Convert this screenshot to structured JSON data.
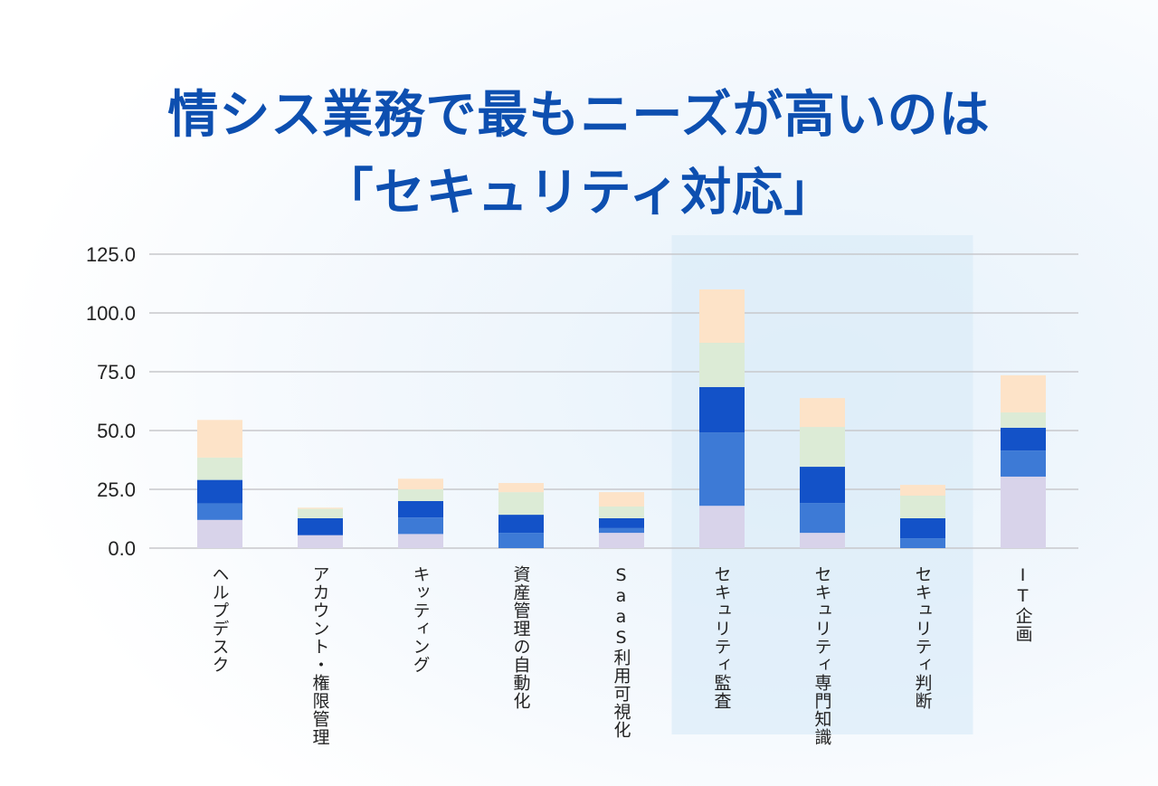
{
  "title_line1": "情シス業務で最もニーズが高いのは",
  "title_line2": "「セキュリティ対応」",
  "chart_data": {
    "type": "bar",
    "stacked": true,
    "categories": [
      "ヘルプデスク",
      "アカウント・権限管理",
      "キッティング",
      "資産管理の自動化",
      "SaaS利用可視化",
      "セキュリティ監査",
      "セキュリティ専門知識",
      "セキュリティ判断",
      "IT企画"
    ],
    "series": [
      {
        "color": "#d8d3ea",
        "values": [
          12.0,
          5.5,
          6.0,
          0.0,
          6.5,
          18.0,
          6.5,
          0.0,
          30.4
        ]
      },
      {
        "color": "#3d7ad6",
        "values": [
          7.0,
          0.0,
          7.0,
          6.5,
          2.0,
          31.2,
          12.7,
          4.2,
          11.1
        ]
      },
      {
        "color": "#1352c8",
        "values": [
          10.0,
          7.2,
          7.0,
          7.7,
          4.2,
          19.3,
          15.4,
          8.5,
          9.7
        ]
      },
      {
        "color": "#dcebd6",
        "values": [
          9.5,
          4.0,
          5.0,
          9.6,
          5.0,
          18.8,
          16.9,
          9.6,
          6.5
        ]
      },
      {
        "color": "#fde3c8",
        "values": [
          16.0,
          0.5,
          4.5,
          3.9,
          6.1,
          22.7,
          12.3,
          4.6,
          15.8
        ]
      }
    ],
    "yticks": [
      "0.0",
      "25.0",
      "50.0",
      "75.0",
      "100.0",
      "125.0"
    ],
    "ylim": [
      0,
      125
    ],
    "grid": true,
    "highlighted_categories": [
      "セキュリティ監査",
      "セキュリティ専門知識",
      "セキュリティ判断"
    ],
    "highlight_color": "#dcecf8",
    "title_color": "#0d4fb0"
  }
}
